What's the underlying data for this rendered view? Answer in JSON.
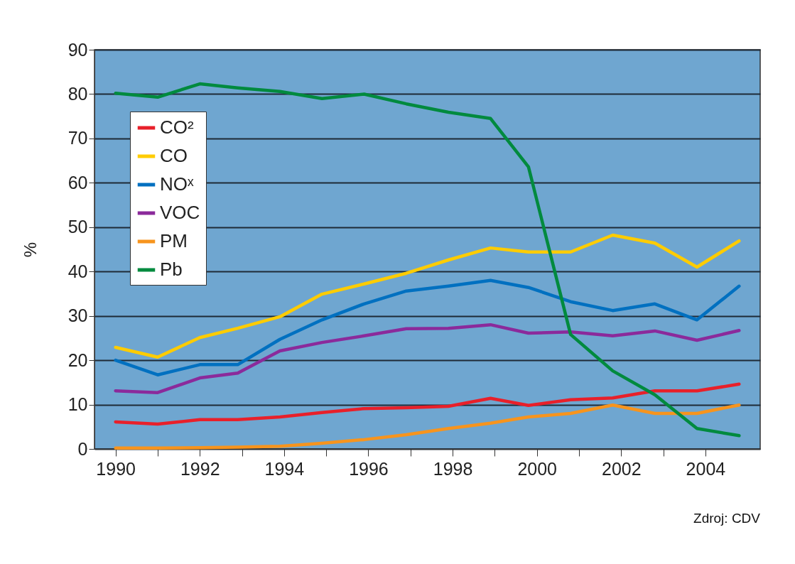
{
  "chart_data": {
    "type": "line",
    "ylabel": "%",
    "x": [
      1990.0,
      1991.0,
      1992.0,
      1992.9,
      1993.9,
      1994.9,
      1995.9,
      1996.9,
      1997.9,
      1998.9,
      1999.8,
      2000.8,
      2001.8,
      2002.8,
      2003.8,
      2004.8
    ],
    "xlim": [
      1989.5,
      2005.3
    ],
    "xticks": [
      1990,
      {
        "value": 1991,
        "label": null
      },
      1992,
      {
        "value": 1993,
        "label": null
      },
      1994,
      {
        "value": 1995,
        "label": null
      },
      1996,
      {
        "value": 1997,
        "label": null
      },
      1998,
      {
        "value": 1999,
        "label": null
      },
      2000,
      {
        "value": 2001,
        "label": null
      },
      2002,
      {
        "value": 2003,
        "label": null
      },
      2004
    ],
    "ylim": [
      0,
      90
    ],
    "yticks": [
      0,
      10,
      20,
      30,
      40,
      50,
      60,
      70,
      80,
      90
    ],
    "grid": "y",
    "legend": "top left",
    "line_style": "solid",
    "annotations": [
      "Zdroj: CDV"
    ],
    "series": [
      {
        "name": "CO²",
        "color": "#e8202a",
        "values": [
          6.1,
          5.6,
          6.6,
          6.6,
          7.2,
          8.2,
          9.1,
          9.3,
          9.6,
          11.4,
          9.8,
          11.1,
          11.5,
          13.1,
          13.1,
          14.6
        ]
      },
      {
        "name": "CO",
        "color": "#ffcc00",
        "values": [
          22.9,
          20.7,
          25.1,
          27.2,
          29.8,
          34.9,
          37.2,
          39.6,
          42.6,
          45.3,
          44.4,
          44.4,
          48.2,
          46.4,
          41.0,
          46.9
        ]
      },
      {
        "name": "NOˣ",
        "color": "#0070c0",
        "values": [
          20.0,
          16.7,
          19.0,
          19.0,
          24.7,
          29.1,
          32.7,
          35.6,
          36.7,
          38.0,
          36.4,
          33.2,
          31.2,
          32.7,
          29.1,
          36.7
        ]
      },
      {
        "name": "VOC",
        "color": "#8b2a9b",
        "values": [
          13.1,
          12.7,
          16.0,
          17.1,
          22.1,
          24.0,
          25.5,
          27.1,
          27.2,
          28.0,
          26.1,
          26.4,
          25.5,
          26.6,
          24.5,
          26.7
        ]
      },
      {
        "name": "PM",
        "color": "#f7941d",
        "values": [
          0.2,
          0.2,
          0.3,
          0.4,
          0.6,
          1.3,
          2.1,
          3.2,
          4.6,
          5.8,
          7.2,
          8.0,
          9.9,
          8.0,
          8.0,
          9.9
        ]
      },
      {
        "name": "Pb",
        "color": "#008a3e",
        "values": [
          80.2,
          79.3,
          82.3,
          81.4,
          80.6,
          79.0,
          80.0,
          77.8,
          75.9,
          74.5,
          63.6,
          25.8,
          17.6,
          12.2,
          4.6,
          3.0
        ]
      }
    ]
  }
}
